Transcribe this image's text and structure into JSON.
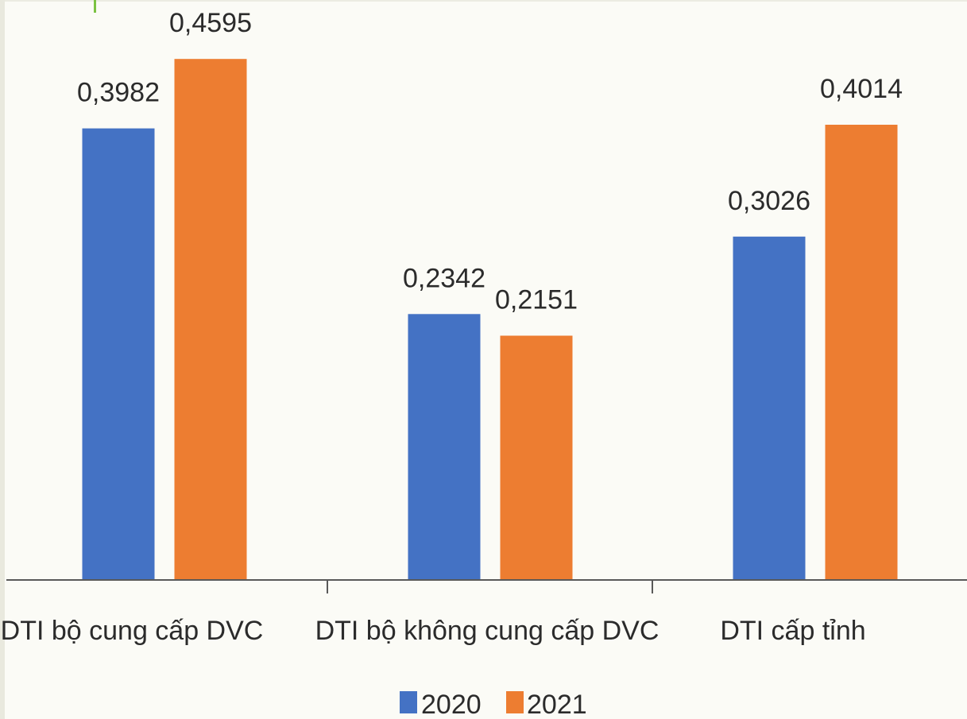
{
  "chart_data": {
    "type": "bar",
    "categories": [
      "DTI bộ cung cấp DVC",
      "DTI bộ không cung cấp DVC",
      "DTI cấp tỉnh"
    ],
    "series": [
      {
        "name": "2020",
        "color": "#4472c4",
        "values": [
          0.3982,
          0.2342,
          0.3026
        ],
        "labels": [
          "0,3982",
          "0,2342",
          "0,3026"
        ]
      },
      {
        "name": "2021",
        "color": "#ed7d31",
        "values": [
          0.4595,
          0.2151,
          0.4014
        ],
        "labels": [
          "0,4595",
          "0,2151",
          "0,4014"
        ]
      }
    ],
    "title": "",
    "xlabel": "",
    "ylabel": "",
    "ylim": [
      0,
      0.48
    ],
    "grid": false,
    "legend_position": "bottom"
  },
  "colors": {
    "axis": "#595959",
    "accent": "#7bc242"
  }
}
